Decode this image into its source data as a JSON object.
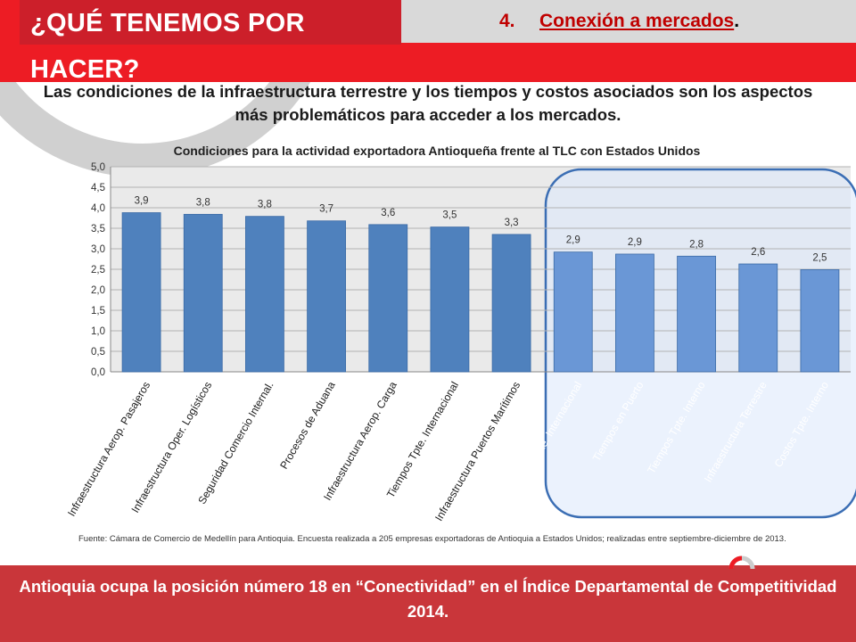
{
  "header": {
    "title": "¿QUÉ TENEMOS POR HACER?",
    "section_number": "4.",
    "section_label": "Conexión a mercados",
    "section_period": "."
  },
  "headline": "Las condiciones de la infraestructura terrestre y los tiempos y costos asociados son los aspectos más problemáticos para acceder a los mercados.",
  "source_note": "Fuente: Cámara de Comercio de Medellín para Antioquia. Encuesta realizada a 205 empresas exportadoras de Antioquia a Estados Unidos; realizadas entre septiembre-diciembre de 2013.",
  "footer": "Antioquia ocupa la posición número 18 en “Conectividad” en el Índice Departamental de Competitividad 2014.",
  "colors": {
    "primary_red": "#ed1c24",
    "title_red": "#cc1f2a",
    "bar": "#4f81bd",
    "bar_highlight": "#6a97d6",
    "highlight_fill": "#dbe8fb",
    "highlight_border": "#3b6eb4",
    "footer_band": "#c9363a"
  },
  "chart_data": {
    "type": "bar",
    "title": "Condiciones para la actividad exportadora Antioqueña frente al TLC con Estados Unidos",
    "categories": [
      "Infraestructura Aerop. Pasajeros",
      "Infraestructura Oper. Logísticos",
      "Seguridad Comercio Internal.",
      "Procesos de Aduana",
      "Infraestructura Aerop. Carga",
      "Tiempos Tpte. Internacional",
      "Infraestructura Puertos Marítimos",
      "Costos Tpte. Internacional",
      "Tiempos en Puerto",
      "Tiempos Tpte. Interno",
      "Infraestructura Terrestre",
      "Costos Tpte. Interno"
    ],
    "values": [
      3.88,
      3.84,
      3.79,
      3.68,
      3.59,
      3.53,
      3.35,
      2.92,
      2.87,
      2.82,
      2.63,
      2.49
    ],
    "data_labels": [
      "3,9",
      "3,8",
      "3,8",
      "3,7",
      "3,6",
      "3,5",
      "3,3",
      "2,9",
      "2,9",
      "2,8",
      "2,6",
      "2,5"
    ],
    "yticks": [
      "0,0",
      "0,5",
      "1,0",
      "1,5",
      "2,0",
      "2,5",
      "3,0",
      "3,5",
      "4,0",
      "4,5",
      "5,0"
    ],
    "ylim": [
      0,
      5
    ],
    "grid": true,
    "legend": "none",
    "highlighted_categories": [
      7,
      8,
      9,
      10,
      11
    ]
  }
}
